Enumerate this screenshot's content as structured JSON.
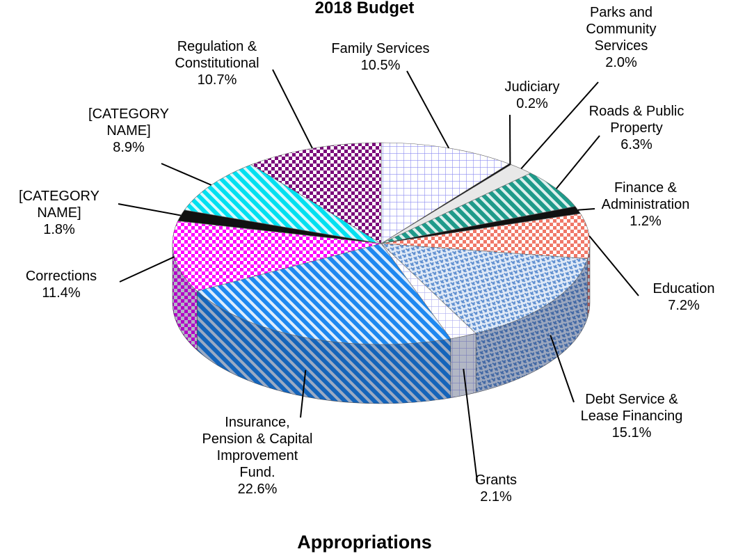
{
  "chart_data": {
    "type": "pie3d",
    "title": "2018 Budget",
    "subtitle": "Appropriations",
    "categories": [
      "Family Services",
      "Judiciary",
      "Parks and Community Services",
      "Roads & Public Property",
      "Finance & Administration",
      "Education",
      "Debt Service & Lease Financing",
      "Grants",
      "Insurance, Pension & Capital Improvement Fund.",
      "Corrections",
      "[CATEGORY NAME]",
      "[CATEGORY NAME]",
      "Regulation & Constitutional"
    ],
    "values": [
      10.5,
      0.2,
      2.0,
      6.3,
      1.2,
      7.2,
      15.1,
      2.1,
      22.6,
      11.4,
      1.8,
      8.9,
      10.7
    ],
    "value_labels": [
      "10.5%",
      "0.2%",
      "2.0%",
      "6.3%",
      "1.2%",
      "7.2%",
      "15.1%",
      "2.1%",
      "22.6%",
      "11.4%",
      "1.8%",
      "8.9%",
      "10.7%"
    ],
    "colors": [
      "#8c8cf0",
      "#111111",
      "#e8e8e8",
      "#1f9a8a",
      "#111111",
      "#f07868",
      "#5f8fd0",
      "#b0b0f0",
      "#1e88f0",
      "#ff00ff",
      "#111111",
      "#00e0f0",
      "#7a0a7a"
    ]
  }
}
